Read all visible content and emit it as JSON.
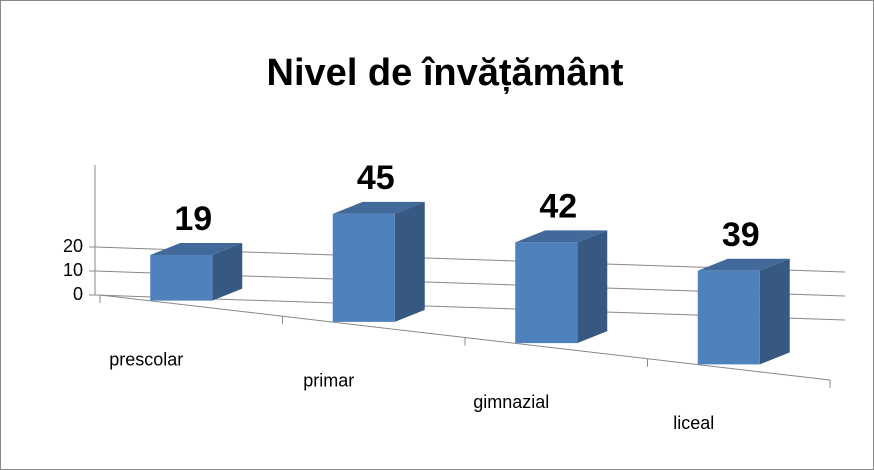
{
  "chart_data": {
    "type": "bar3d",
    "title": "Nivel de învățământ",
    "categories": [
      "prescolar",
      "primar",
      "gimnazial",
      "liceal"
    ],
    "values": [
      19,
      45,
      42,
      39
    ],
    "color": "#4f81bd",
    "ylim": [
      0,
      50
    ],
    "yticks": [
      0,
      10,
      20
    ],
    "grid": true
  }
}
